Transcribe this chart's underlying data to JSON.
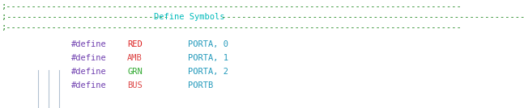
{
  "bg_color": "#ffffff",
  "comment_color": "#228822",
  "title_color": "#00bbbb",
  "keyword_color": "#7040b0",
  "name_color_red": "#dd2222",
  "name_color_amber": "#dd4444",
  "name_color_grn": "#33aa33",
  "name_color_bus": "#dd4444",
  "value_color": "#2299bb",
  "guide_color": "#aabbcc",
  "comment_line1": ";------------------------------------------------------------------------------------------",
  "comment_line2_left": ";-------------------------------- ",
  "comment_line2_title": "Define Symbols",
  "comment_line2_right": " ---------------------------------------------------------------",
  "comment_line3": ";------------------------------------------------------------------------------------------",
  "defines": [
    {
      "keyword": "#define",
      "name": "RED",
      "name_color": "#dd2222",
      "value": "PORTA, 0"
    },
    {
      "keyword": "#define",
      "name": "AMB",
      "name_color": "#dd4444",
      "value": "PORTA, 1"
    },
    {
      "keyword": "#define",
      "name": "GRN",
      "name_color": "#33aa33",
      "value": "PORTA, 2"
    },
    {
      "keyword": "#define",
      "name": "BUS",
      "name_color": "#dd4444",
      "value": "PORTB"
    }
  ],
  "figsize": [
    6.47,
    1.34
  ],
  "dpi": 100,
  "font_size": 7.5,
  "font_family": "DejaVu Sans Mono"
}
